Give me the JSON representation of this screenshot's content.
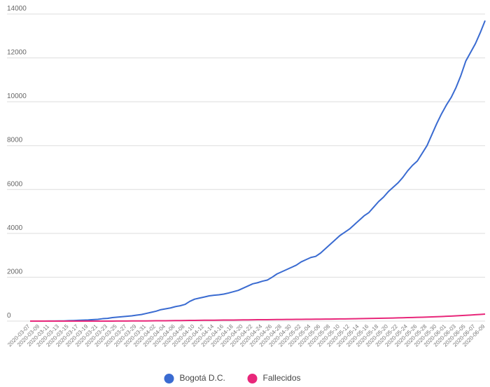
{
  "chart_data": {
    "type": "line",
    "categories": [
      "2020-03-07",
      null,
      "2020-03-09",
      null,
      "2020-03-11",
      null,
      "2020-03-13",
      null,
      "2020-03-15",
      null,
      "2020-03-17",
      null,
      "2020-03-19",
      null,
      "2020-03-21",
      null,
      "2020-03-23",
      null,
      "2020-03-25",
      null,
      "2020-03-27",
      null,
      "2020-03-29",
      null,
      "2020-03-31",
      null,
      "2020-04-02",
      null,
      "2020-04-04",
      null,
      "2020-04-06",
      null,
      "2020-04-08",
      null,
      "2020-04-10",
      null,
      "2020-04-12",
      null,
      "2020-04-14",
      null,
      "2020-04-16",
      null,
      "2020-04-18",
      null,
      "2020-04-20",
      null,
      "2020-04-22",
      null,
      "2020-04-24",
      null,
      "2020-04-26",
      null,
      "2020-04-28",
      null,
      "2020-04-30",
      null,
      "2020-05-02",
      null,
      "2020-05-04",
      null,
      "2020-05-06",
      null,
      "2020-05-08",
      null,
      "2020-05-10",
      null,
      "2020-05-12",
      null,
      "2020-05-14",
      null,
      "2020-05-16",
      null,
      "2020-05-18",
      null,
      "2020-05-20",
      null,
      "2020-05-22",
      null,
      "2020-05-24",
      null,
      "2020-05-26",
      null,
      "2020-05-28",
      null,
      "2020-05-30",
      null,
      "2020-06-01",
      null,
      "2020-06-03",
      null,
      "2020-06-05",
      null,
      "2020-06-07",
      null,
      "2020-06-09"
    ],
    "series": [
      {
        "name": "Bogotá D.C.",
        "color": "#3a6bd1",
        "values": [
          1,
          1,
          1,
          2,
          3,
          4,
          6,
          9,
          19,
          25,
          35,
          45,
          53,
          67,
          80,
          110,
          125,
          160,
          180,
          200,
          220,
          240,
          270,
          300,
          350,
          400,
          450,
          520,
          560,
          600,
          660,
          700,
          760,
          900,
          1000,
          1050,
          1100,
          1150,
          1180,
          1200,
          1230,
          1280,
          1340,
          1400,
          1500,
          1600,
          1700,
          1750,
          1820,
          1870,
          2000,
          2150,
          2250,
          2350,
          2450,
          2550,
          2700,
          2800,
          2900,
          2950,
          3100,
          3300,
          3500,
          3700,
          3900,
          4050,
          4200,
          4400,
          4600,
          4800,
          4950,
          5200,
          5450,
          5650,
          5900,
          6100,
          6300,
          6550,
          6850,
          7100,
          7300,
          7650,
          8000,
          8500,
          9000,
          9450,
          9850,
          10200,
          10650,
          11200,
          11850,
          12250,
          12650,
          13150,
          13700
        ]
      },
      {
        "name": "Fallecidos",
        "color": "#e8277a",
        "values": [
          0,
          0,
          0,
          0,
          0,
          0,
          0,
          0,
          0,
          0,
          0,
          0,
          0,
          0,
          0,
          1,
          2,
          2,
          3,
          4,
          5,
          6,
          7,
          8,
          10,
          12,
          14,
          16,
          18,
          20,
          22,
          25,
          28,
          31,
          34,
          36,
          38,
          40,
          42,
          44,
          46,
          48,
          50,
          52,
          55,
          58,
          60,
          62,
          64,
          66,
          68,
          70,
          72,
          74,
          76,
          78,
          80,
          82,
          84,
          86,
          88,
          90,
          92,
          95,
          98,
          100,
          103,
          106,
          110,
          114,
          118,
          122,
          126,
          130,
          135,
          140,
          146,
          152,
          158,
          164,
          170,
          176,
          184,
          192,
          200,
          208,
          218,
          228,
          240,
          252,
          264,
          276,
          290,
          305,
          320
        ]
      }
    ],
    "ylim": [
      0,
      14000
    ],
    "yticks": [
      0,
      2000,
      4000,
      6000,
      8000,
      10000,
      12000,
      14000
    ],
    "grid": true,
    "legend": "bottom"
  }
}
